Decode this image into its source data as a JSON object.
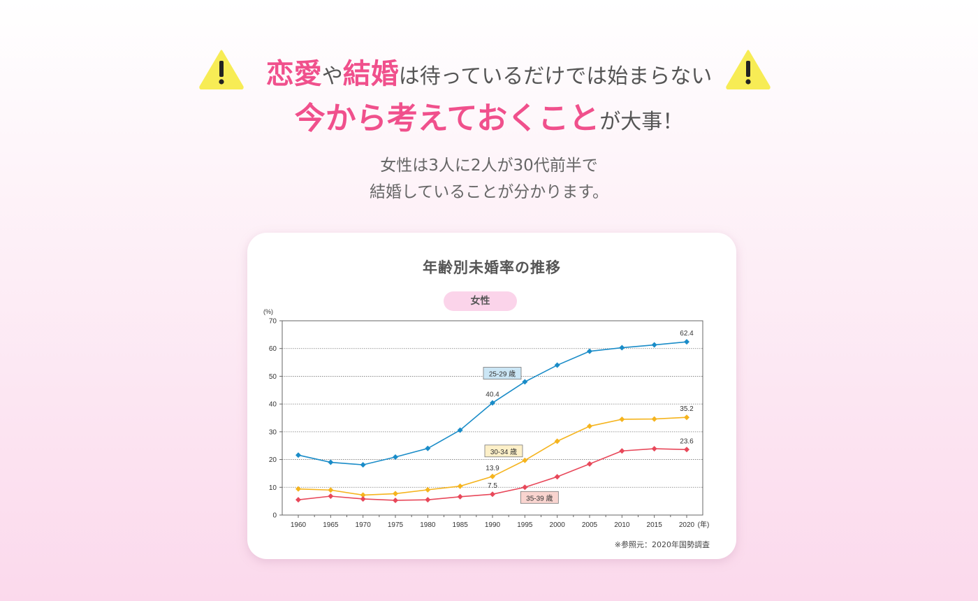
{
  "header": {
    "line1_pink1": "恋愛",
    "line1_text1": "や",
    "line1_pink2": "結婚",
    "line1_text2": "は待っているだけでは始まらない",
    "line2_pink": "今から考えておくこと",
    "line2_text": "が大事！",
    "warning_icon": "warning-icon",
    "warning_color": "#f7ec55"
  },
  "subtext": {
    "line1": "女性は3人に2人が30代前半で",
    "line2": "結婚していることが分かります。"
  },
  "card": {
    "title": "年齢別未婚率の推移",
    "pill": "女性",
    "source": "※参照元：2020年国勢調査"
  },
  "chart_data": {
    "type": "line",
    "x": [
      1960,
      1965,
      1970,
      1975,
      1980,
      1985,
      1990,
      1995,
      2000,
      2005,
      2010,
      2015,
      2020
    ],
    "x_unit_label": "(年)",
    "y_unit_label": "(%)",
    "ylim": [
      0,
      70
    ],
    "yticks": [
      0,
      10,
      20,
      30,
      40,
      50,
      60,
      70
    ],
    "grid": true,
    "series": [
      {
        "name": "25-29 歳",
        "color": "#1a8cc8",
        "label_bg": "#cbe6f5",
        "values": [
          21.6,
          19.0,
          18.1,
          20.9,
          24.0,
          30.6,
          40.4,
          48.0,
          54.0,
          59.0,
          60.3,
          61.3,
          62.4
        ]
      },
      {
        "name": "30-34 歳",
        "color": "#f5b41e",
        "label_bg": "#fdf0c8",
        "values": [
          9.4,
          9.0,
          7.2,
          7.7,
          9.1,
          10.4,
          13.9,
          19.7,
          26.6,
          32.0,
          34.5,
          34.6,
          35.2
        ]
      },
      {
        "name": "35-39 歳",
        "color": "#e8485a",
        "label_bg": "#f9d4cf",
        "values": [
          5.5,
          6.8,
          5.8,
          5.3,
          5.5,
          6.6,
          7.5,
          10.0,
          13.8,
          18.4,
          23.1,
          23.9,
          23.6
        ]
      }
    ],
    "annotations": [
      {
        "series": 0,
        "index": 6,
        "text": "40.4"
      },
      {
        "series": 0,
        "index": 12,
        "text": "62.4"
      },
      {
        "series": 1,
        "index": 6,
        "text": "13.9"
      },
      {
        "series": 1,
        "index": 12,
        "text": "35.2"
      },
      {
        "series": 2,
        "index": 6,
        "text": "7.5"
      },
      {
        "series": 2,
        "index": 12,
        "text": "23.6"
      }
    ]
  }
}
